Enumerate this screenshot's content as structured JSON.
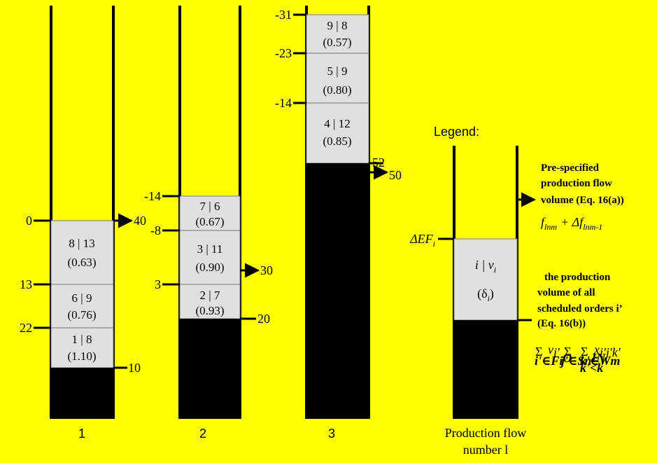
{
  "columns": [
    {
      "number": "1",
      "blocks": [
        {
          "top": "8 | 13",
          "bottom": "(0.63)"
        },
        {
          "top": "6 | 9",
          "bottom": "(0.76)"
        },
        {
          "top": "1 | 8",
          "bottom": "(1.10)"
        }
      ],
      "left_ticks": [
        "0",
        "13",
        "22"
      ],
      "right_ticks": [
        "40",
        "10"
      ]
    },
    {
      "number": "2",
      "blocks": [
        {
          "top": "7 | 6",
          "bottom": "(0.67)"
        },
        {
          "top": "3 | 11",
          "bottom": "(0.90)"
        },
        {
          "top": "2 | 7",
          "bottom": "(0.93)"
        }
      ],
      "left_ticks": [
        "-14",
        "-8",
        "3"
      ],
      "right_ticks": [
        "30",
        "20"
      ]
    },
    {
      "number": "3",
      "blocks": [
        {
          "top": "9 | 8",
          "bottom": "(0.57)"
        },
        {
          "top": "5 | 9",
          "bottom": "(0.80)"
        },
        {
          "top": "4 | 12",
          "bottom": "(0.85)"
        }
      ],
      "left_ticks": [
        "-31",
        "-23",
        "-14"
      ],
      "right_ticks": [
        "52",
        "50"
      ]
    }
  ],
  "legend": {
    "title": "Legend:",
    "delta_ef": "ΔEF",
    "delta_ef_sub": "i",
    "cell_top": "i | v",
    "cell_top_sub": "i",
    "cell_bottom": "(δ",
    "cell_bottom_sub": "i",
    "cell_bottom_close": ")",
    "note1_lines": [
      "Pre-specified",
      "production flow",
      "volume (Eq. 16(a))"
    ],
    "formula1": "f",
    "formula1_sub": "lnm",
    "formula1_plus": "+ Δf",
    "formula1_sub2": "lnm-1",
    "note2_lines": [
      "the production",
      "volume of all",
      "scheduled orders i’",
      "(Eq. 16(b))"
    ],
    "formula2": "Σ v  Σ  Σ x",
    "formula2_subs": [
      "i'∈F",
      "i",
      "O",
      "i'",
      "j'∈S",
      "n",
      "IN",
      "k'∈W",
      "m",
      "k'<k",
      "i'j'k'"
    ]
  },
  "axis_label_lines": [
    "Production flow",
    "number l"
  ],
  "colors": {
    "background": "#ffff00",
    "block_fill": "#e0e0e0",
    "filled": "#000000"
  }
}
